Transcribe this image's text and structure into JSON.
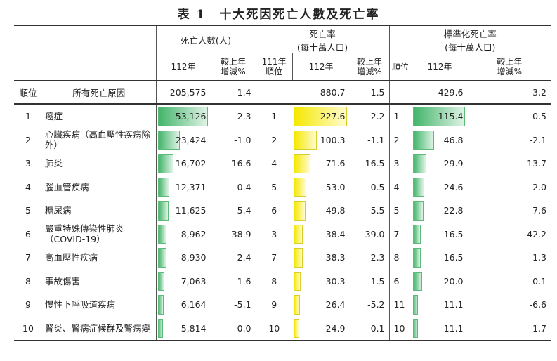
{
  "title": "表 1　十大死因死亡人數及死亡率",
  "headers": {
    "deaths_group": "死亡人數(人)",
    "rate_group_l1": "死亡率",
    "rate_group_l2": "(每十萬人口)",
    "std_group_l1": "標準化死亡率",
    "std_group_l2": "(每十萬人口)",
    "year112": "112年",
    "change_l1": "較上年",
    "change_l2": "增減%",
    "rank111_l1": "111年",
    "rank111_l2": "順位",
    "rank": "順位"
  },
  "all_causes": {
    "rank_label": "順位",
    "name": "所有死亡原因",
    "deaths": "205,575",
    "deaths_change": "-1.4",
    "rate": "880.7",
    "rate_change": "-1.5",
    "std_rate": "429.6",
    "std_change": "-3.2"
  },
  "rows": [
    {
      "rank": "1",
      "name": "癌症",
      "deaths": "53,126",
      "deaths_v": 53126,
      "deaths_change": "2.3",
      "rank111": "1",
      "rate": "227.6",
      "rate_v": 227.6,
      "rate_change": "2.2",
      "std_rank": "1",
      "std_rate": "115.4",
      "std_v": 115.4,
      "std_change": "-0.5"
    },
    {
      "rank": "2",
      "name": "心臟疾病（高血壓性疾病除外）",
      "deaths": "23,424",
      "deaths_v": 23424,
      "deaths_change": "-1.0",
      "rank111": "2",
      "rate": "100.3",
      "rate_v": 100.3,
      "rate_change": "-1.1",
      "std_rank": "2",
      "std_rate": "46.8",
      "std_v": 46.8,
      "std_change": "-2.1"
    },
    {
      "rank": "3",
      "name": "肺炎",
      "deaths": "16,702",
      "deaths_v": 16702,
      "deaths_change": "16.6",
      "rank111": "4",
      "rate": "71.6",
      "rate_v": 71.6,
      "rate_change": "16.5",
      "std_rank": "3",
      "std_rate": "29.9",
      "std_v": 29.9,
      "std_change": "13.7"
    },
    {
      "rank": "4",
      "name": "腦血管疾病",
      "deaths": "12,371",
      "deaths_v": 12371,
      "deaths_change": "-0.4",
      "rank111": "5",
      "rate": "53.0",
      "rate_v": 53.0,
      "rate_change": "-0.5",
      "std_rank": "4",
      "std_rate": "24.6",
      "std_v": 24.6,
      "std_change": "-2.0"
    },
    {
      "rank": "5",
      "name": "糖尿病",
      "deaths": "11,625",
      "deaths_v": 11625,
      "deaths_change": "-5.4",
      "rank111": "6",
      "rate": "49.8",
      "rate_v": 49.8,
      "rate_change": "-5.5",
      "std_rank": "5",
      "std_rate": "22.8",
      "std_v": 22.8,
      "std_change": "-7.6"
    },
    {
      "rank": "6",
      "name": "嚴重特殊傳染性肺炎（COVID-19）",
      "deaths": "8,962",
      "deaths_v": 8962,
      "deaths_change": "-38.9",
      "rank111": "3",
      "rate": "38.4",
      "rate_v": 38.4,
      "rate_change": "-39.0",
      "std_rank": "7",
      "std_rate": "16.5",
      "std_v": 16.5,
      "std_change": "-42.2"
    },
    {
      "rank": "7",
      "name": "高血壓性疾病",
      "deaths": "8,930",
      "deaths_v": 8930,
      "deaths_change": "2.4",
      "rank111": "7",
      "rate": "38.3",
      "rate_v": 38.3,
      "rate_change": "2.3",
      "std_rank": "8",
      "std_rate": "16.5",
      "std_v": 16.5,
      "std_change": "1.3"
    },
    {
      "rank": "8",
      "name": "事故傷害",
      "deaths": "7,063",
      "deaths_v": 7063,
      "deaths_change": "1.6",
      "rank111": "8",
      "rate": "30.3",
      "rate_v": 30.3,
      "rate_change": "1.5",
      "std_rank": "6",
      "std_rate": "20.0",
      "std_v": 20.0,
      "std_change": "0.1"
    },
    {
      "rank": "9",
      "name": "慢性下呼吸道疾病",
      "deaths": "6,164",
      "deaths_v": 6164,
      "deaths_change": "-5.1",
      "rank111": "9",
      "rate": "26.4",
      "rate_v": 26.4,
      "rate_change": "-5.2",
      "std_rank": "11",
      "std_rate": "11.1",
      "std_v": 11.1,
      "std_change": "-6.6"
    },
    {
      "rank": "10",
      "name": "腎炎、腎病症候群及腎病變",
      "deaths": "5,814",
      "deaths_v": 5814,
      "deaths_change": "0.0",
      "rank111": "10",
      "rate": "24.9",
      "rate_v": 24.9,
      "rate_change": "-0.1",
      "std_rank": "10",
      "std_rate": "11.1",
      "std_v": 11.1,
      "std_change": "-1.7"
    }
  ],
  "colors": {
    "deaths_bar": "#43b56a",
    "rate_bar": "#f5e800",
    "std_bar": "#43b56a"
  }
}
